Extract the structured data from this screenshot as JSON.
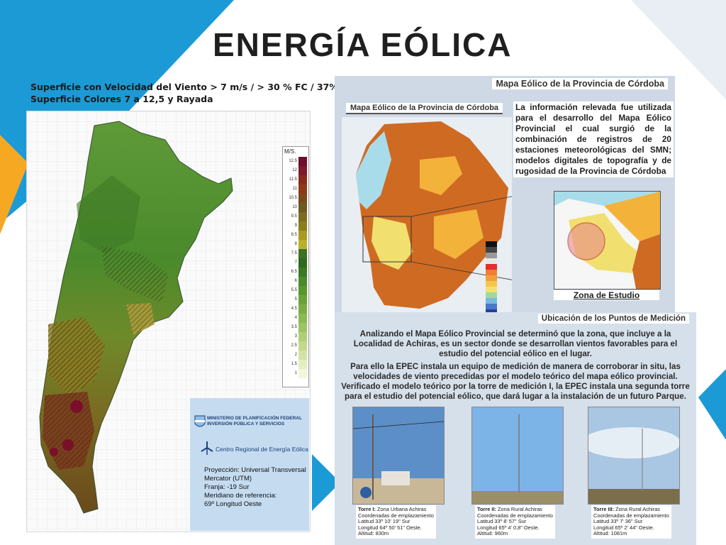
{
  "slide": {
    "title": "ENERGÍA EÓLICA",
    "subtitle_lines": [
      "Superficie con Velocidad del Viento > 7 m/s / > 30 % FC / 37%",
      "Superficie  Colores 7 a 12,5 y Rayada"
    ]
  },
  "left_map": {
    "legend_title": "M/S.",
    "legend": [
      {
        "label": "12.5",
        "color": "#6e0f2e"
      },
      {
        "label": "12",
        "color": "#7d1a2c"
      },
      {
        "label": "11.5",
        "color": "#8a2a1c"
      },
      {
        "label": "11",
        "color": "#8e3a16"
      },
      {
        "label": "10.5",
        "color": "#7a4a1a"
      },
      {
        "label": "10",
        "color": "#6b5a22"
      },
      {
        "label": "9.5",
        "color": "#7d6b20"
      },
      {
        "label": "9",
        "color": "#8c7e1a"
      },
      {
        "label": "8.5",
        "color": "#a89b22"
      },
      {
        "label": "8",
        "color": "#b9b02e"
      },
      {
        "label": "7.5",
        "color": "#3f6f22"
      },
      {
        "label": "7",
        "color": "#2f6a1e"
      },
      {
        "label": "6.5",
        "color": "#3a7a25"
      },
      {
        "label": "6",
        "color": "#4a8a2a"
      },
      {
        "label": "5.5",
        "color": "#5a962f"
      },
      {
        "label": "5",
        "color": "#6aa238"
      },
      {
        "label": "4.5",
        "color": "#7aae44"
      },
      {
        "label": "4",
        "color": "#8bb952"
      },
      {
        "label": "3.5",
        "color": "#9cc463"
      },
      {
        "label": "3",
        "color": "#aed077"
      },
      {
        "label": "2.5",
        "color": "#c0da8c"
      },
      {
        "label": "2",
        "color": "#d2e4a4"
      },
      {
        "label": "1.5",
        "color": "#e2eec0"
      },
      {
        "label": "1",
        "color": "#f1f6dc"
      }
    ],
    "ministry": "MINISTERIO DE PLANIFICACIÓN FEDERAL INVERSIÓN PÚBLICA Y SERVICIOS",
    "centro": "Centro Regional de Energía Eólica",
    "projection": [
      "Proyección: Universal Transversal",
      "Mercator (UTM)",
      "Franja: -19 Sur",
      "Meridiano de referencia:",
      "69º Longitud Oeste"
    ]
  },
  "cordoba_panel": {
    "header": "Mapa Eólico de la Provincia de Córdoba",
    "map_title": "Mapa Eólico de la Provincia de Córdoba",
    "info": "La información relevada fue utilizada para el desarrollo del Mapa Eólico Provincial el cual surgió de la combinación de registros de 20 estaciones meteorológicas del SMN; modelos digitales de topografía y de rugosidad de la Provincia de Córdoba",
    "zona_label": "Zona de Estudio"
  },
  "medicion_panel": {
    "header": "Ubicación de los Puntos de Medición",
    "paragraph1": "Analizando el Mapa Eólico Provincial se determinó que la zona, que incluye a la Localidad de Achiras, es un sector donde se desarrollan vientos favorables para el estudio del potencial eólico en el lugar.",
    "paragraph2": "Para ello la EPEC instala un equipo de medición de manera de corroborar in situ, las velocidades de viento precedidas por el modelo teórico del mapa eólico provincial. Verificado el modelo teórico por la torre de medición I, la EPEC instala una segunda torre para el estudio del potencial eólico, que dará lugar a la instalación de un futuro Parque.",
    "towers": [
      {
        "name": "Torre I:",
        "zone": "Zona Urbana Achiras",
        "coords": "Coordenadas de emplazamiento",
        "lat": "Latitud 33º 10' 19\" Sur",
        "lon": "Longitud 64º 50' 51\" Oeste.",
        "alt": "Altitud: 830m"
      },
      {
        "name": "Torre II:",
        "zone": "Zona Rural Achiras",
        "coords": "Coordenadas de emplazamiento",
        "lat": "Latitud 33º 8' 57\" Sur",
        "lon": "Longitud 65º 4' 0,8\" Oeste.",
        "alt": "Altitud: 960m"
      },
      {
        "name": "Torre III:",
        "zone": "Zona Rural Achiras",
        "coords": "Coordenadas de emplazamiento",
        "lat": "Latitud 33º 7' 36\" Sur",
        "lon": "Longitud 65º 2' 44\" Oeste.",
        "alt": "Altitud: 1081m"
      }
    ]
  }
}
